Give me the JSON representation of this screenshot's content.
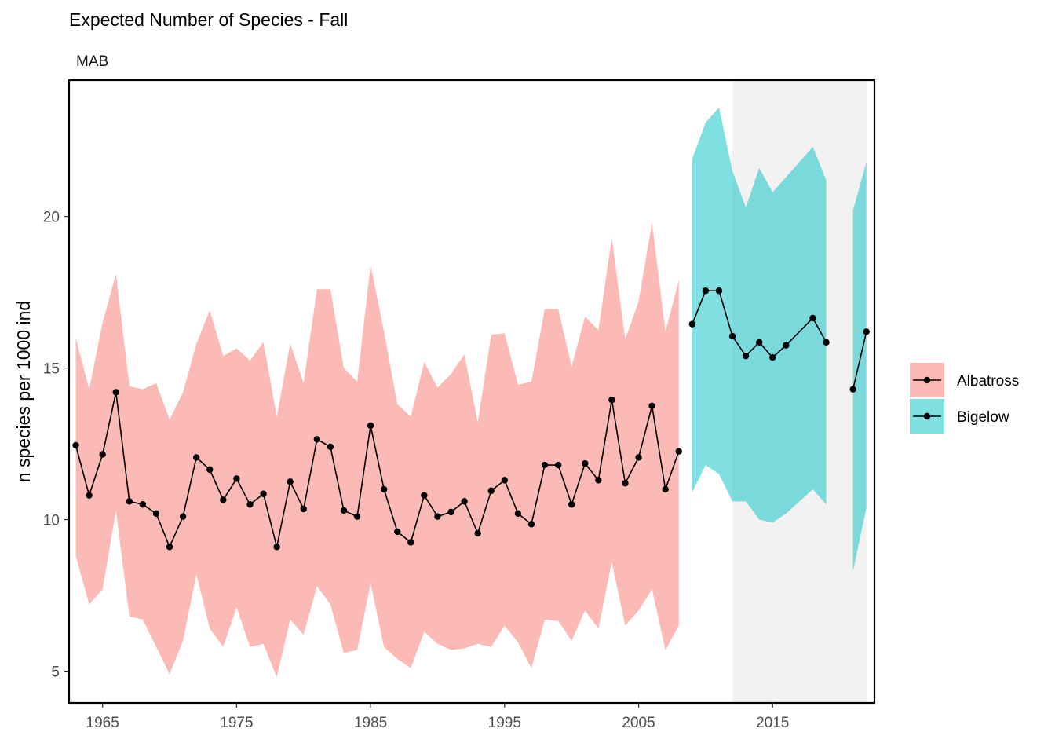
{
  "chart_data": {
    "type": "line",
    "title": "Expected Number of Species - Fall",
    "subtitle": "MAB",
    "xlabel": "",
    "ylabel": "n species per 1000 ind",
    "xlim": [
      1962.5,
      2022.6
    ],
    "ylim": [
      3.95,
      24.5
    ],
    "x_ticks": [
      1965,
      1975,
      1985,
      1995,
      2005,
      2015
    ],
    "x_tick_labels": [
      "1965",
      "1975",
      "1985",
      "1995",
      "2005",
      "2015"
    ],
    "y_ticks": [
      5,
      10,
      15,
      20
    ],
    "y_tick_labels": [
      "5",
      "10",
      "15",
      "20"
    ],
    "grid": false,
    "legend_position": "right",
    "shaded_period": [
      2012,
      2022
    ],
    "colors": {
      "Albatross": "#F8766D",
      "Bigelow": "#00BFC4",
      "shade": "#f2f2f2",
      "line": "#000000"
    },
    "series": [
      {
        "name": "Albatross",
        "x": [
          1963,
          1964,
          1965,
          1966,
          1967,
          1968,
          1969,
          1970,
          1971,
          1972,
          1973,
          1974,
          1975,
          1976,
          1977,
          1978,
          1979,
          1980,
          1981,
          1982,
          1983,
          1984,
          1985,
          1986,
          1987,
          1988,
          1989,
          1990,
          1991,
          1992,
          1993,
          1994,
          1995,
          1996,
          1997,
          1998,
          1999,
          2000,
          2001,
          2002,
          2003,
          2004,
          2005,
          2006,
          2007,
          2008
        ],
        "y": [
          12.45,
          10.8,
          12.15,
          14.2,
          10.6,
          10.5,
          10.2,
          9.1,
          10.1,
          12.05,
          11.65,
          10.65,
          11.35,
          10.5,
          10.85,
          9.1,
          11.25,
          10.35,
          12.65,
          12.4,
          10.3,
          10.1,
          13.1,
          11.0,
          9.6,
          9.25,
          10.8,
          10.1,
          10.25,
          10.6,
          9.55,
          10.95,
          11.3,
          10.2,
          9.85,
          11.8,
          11.8,
          10.5,
          11.85,
          11.3,
          13.95,
          11.2,
          12.05,
          13.75,
          11.0,
          12.25
        ],
        "lower": [
          8.8,
          7.2,
          7.7,
          10.3,
          6.8,
          6.7,
          5.8,
          4.9,
          6.0,
          8.2,
          6.4,
          5.8,
          7.1,
          5.8,
          5.9,
          4.8,
          6.7,
          6.2,
          7.8,
          7.2,
          5.6,
          5.7,
          7.9,
          5.8,
          5.4,
          5.1,
          6.3,
          5.9,
          5.7,
          5.75,
          5.9,
          5.8,
          6.5,
          5.95,
          5.1,
          6.7,
          6.65,
          6.0,
          7.0,
          6.4,
          8.6,
          6.5,
          7.0,
          7.7,
          5.7,
          6.5
        ],
        "upper": [
          16.0,
          14.3,
          16.5,
          18.1,
          14.4,
          14.3,
          14.5,
          13.3,
          14.2,
          15.8,
          16.9,
          15.4,
          15.65,
          15.25,
          15.85,
          13.4,
          15.8,
          14.5,
          17.6,
          17.6,
          15.0,
          14.55,
          18.4,
          16.2,
          13.8,
          13.4,
          15.2,
          14.35,
          14.8,
          15.45,
          13.2,
          16.1,
          16.15,
          14.45,
          14.55,
          16.95,
          16.95,
          15.05,
          16.7,
          16.25,
          19.3,
          15.95,
          17.2,
          19.8,
          16.2,
          17.9
        ]
      },
      {
        "name": "Bigelow",
        "segments": [
          {
            "x": [
              2009,
              2010,
              2011,
              2012,
              2013,
              2014,
              2015,
              2016,
              2018,
              2019
            ],
            "y": [
              16.45,
              17.55,
              17.55,
              16.05,
              15.4,
              15.85,
              15.35,
              15.75,
              16.65,
              15.85
            ],
            "lower": [
              10.9,
              11.8,
              11.5,
              10.6,
              10.6,
              10.0,
              9.9,
              10.2,
              11.0,
              10.5
            ],
            "upper": [
              21.9,
              23.1,
              23.6,
              21.5,
              20.3,
              21.6,
              20.8,
              21.3,
              22.3,
              21.2
            ]
          },
          {
            "x": [
              2021,
              2022
            ],
            "y": [
              14.3,
              16.2
            ],
            "lower": [
              8.3,
              10.4
            ],
            "upper": [
              20.2,
              21.8
            ]
          }
        ]
      }
    ]
  }
}
